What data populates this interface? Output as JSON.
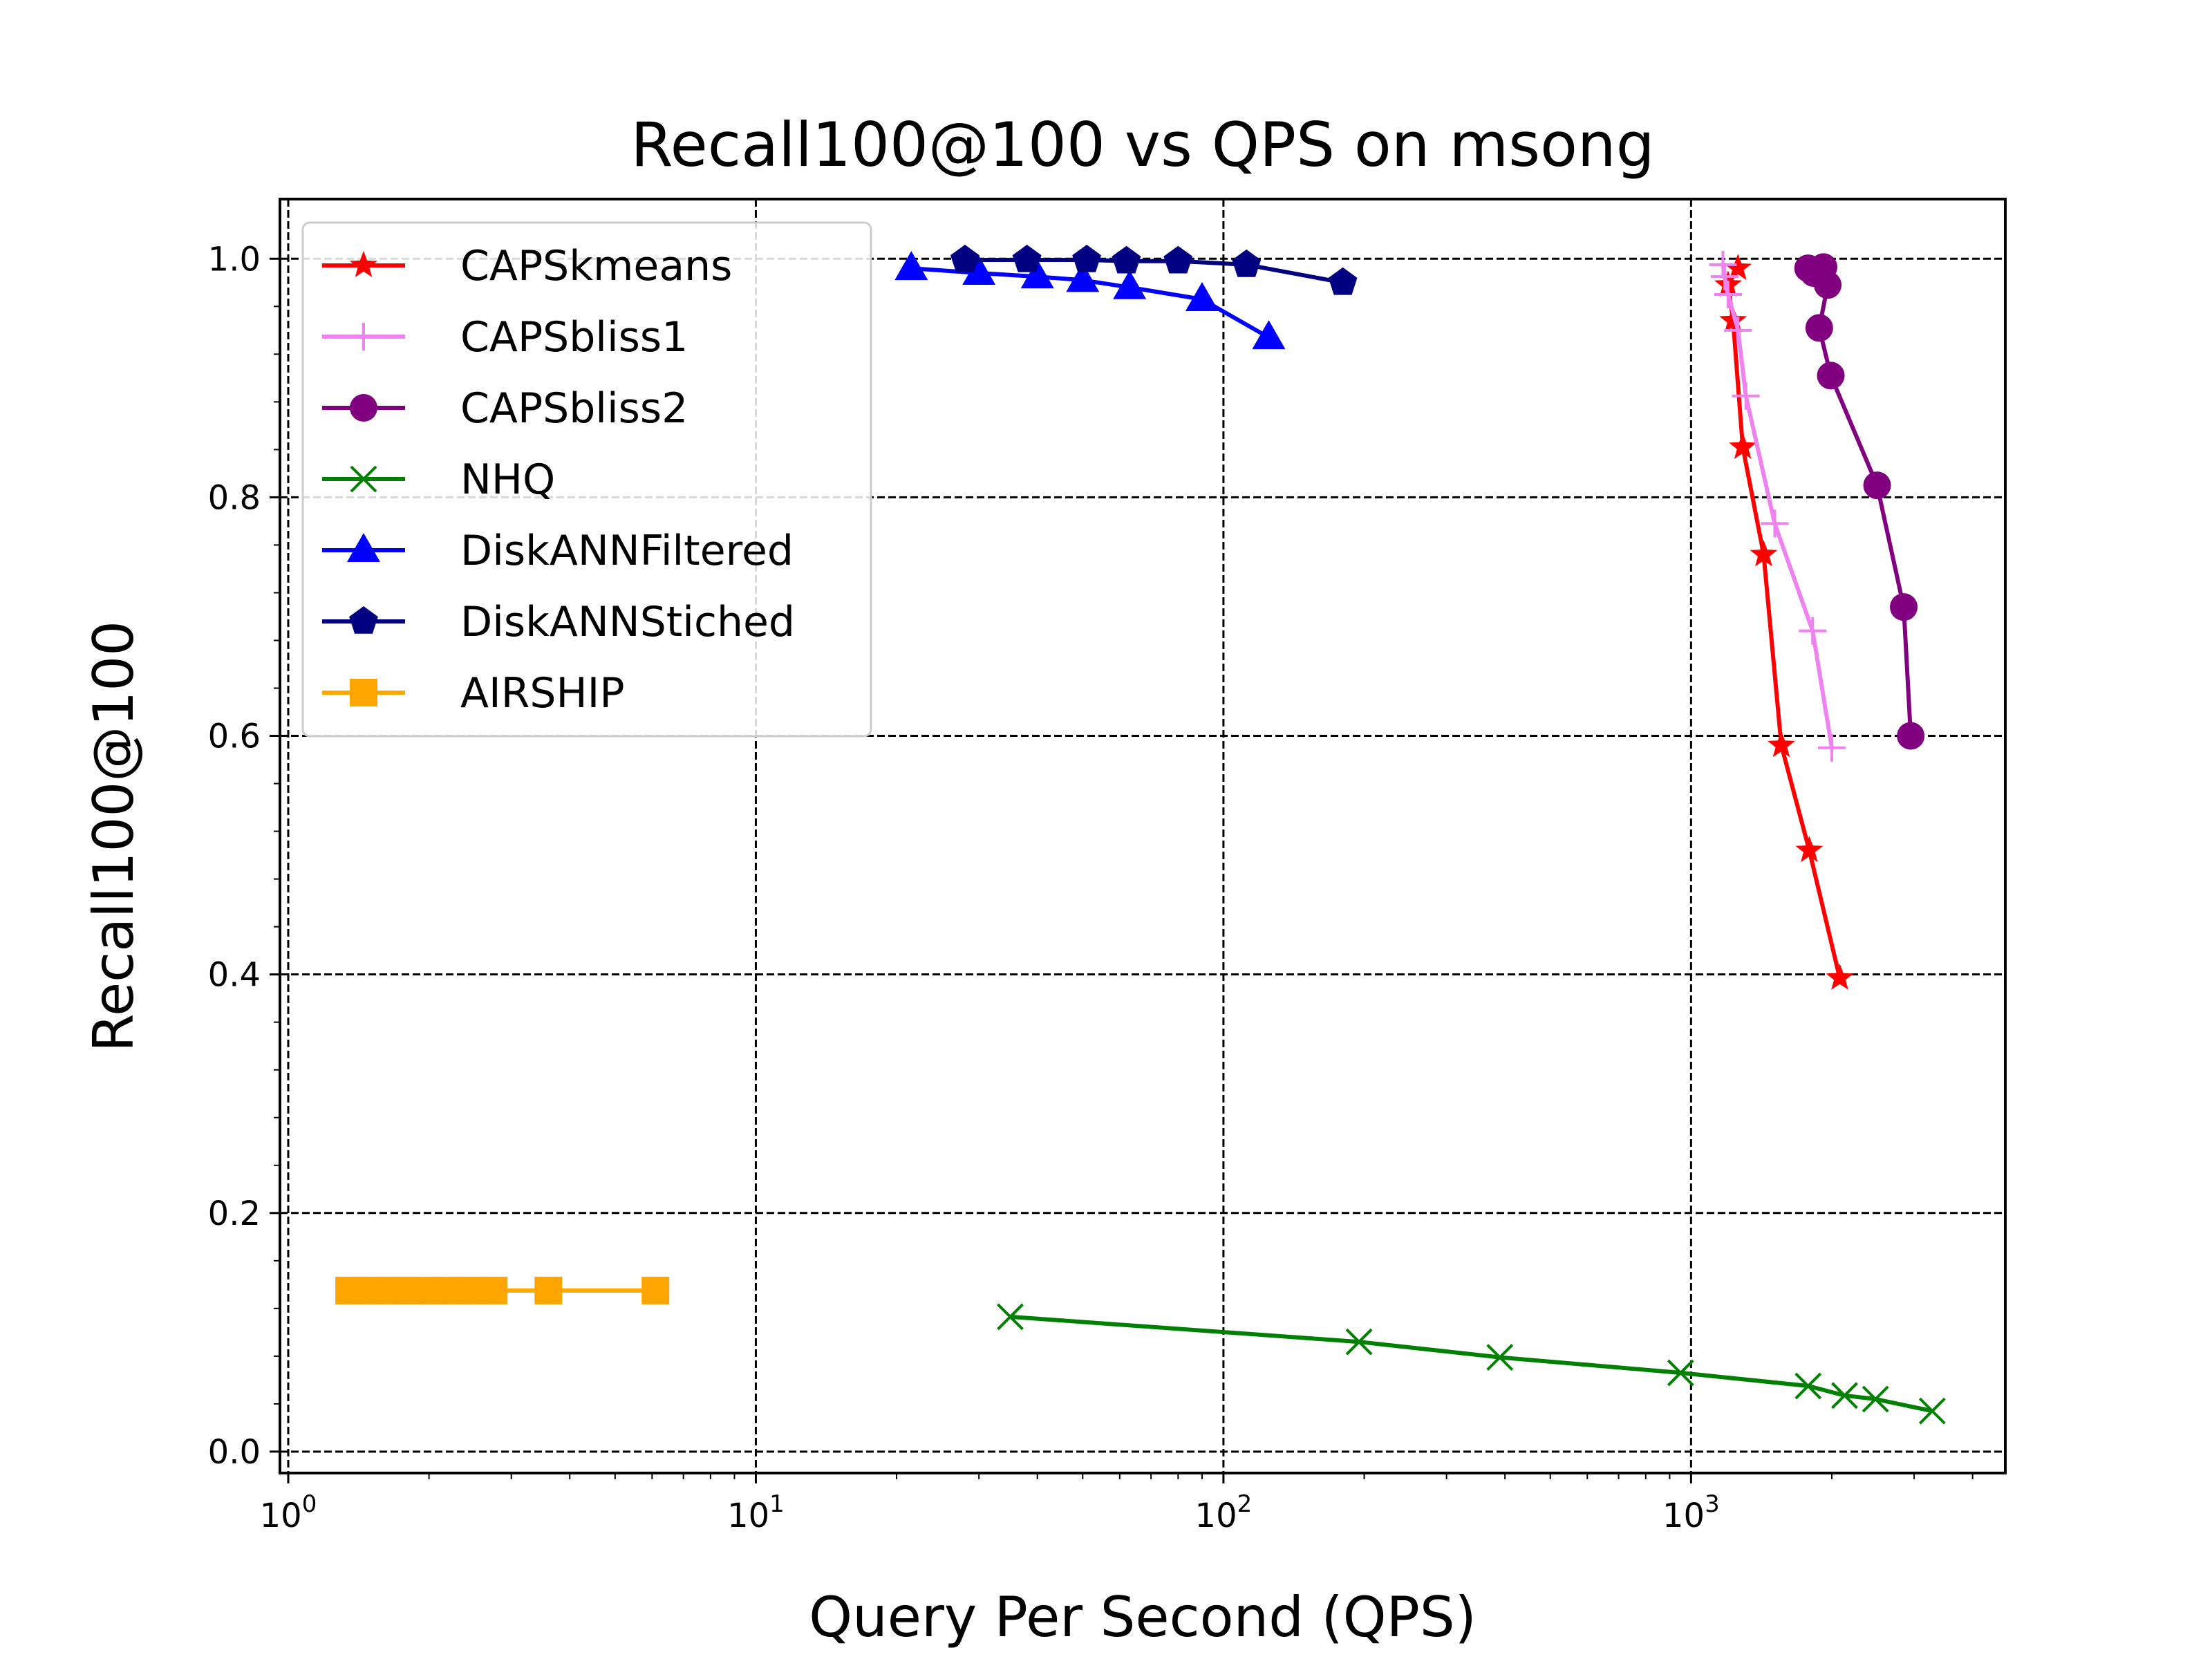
{
  "chart_data": {
    "type": "line",
    "title": "Recall100@100 vs QPS on msong",
    "xlabel": "Query Per Second (QPS)",
    "ylabel": "Recall100@100",
    "xscale": "log",
    "xlim": [
      0.96,
      4700
    ],
    "ylim": [
      -0.018,
      1.05
    ],
    "x_ticks": [
      {
        "value": 1,
        "base": "10",
        "exp": "0"
      },
      {
        "value": 10,
        "base": "10",
        "exp": "1"
      },
      {
        "value": 100,
        "base": "10",
        "exp": "2"
      },
      {
        "value": 1000,
        "base": "10",
        "exp": "3"
      }
    ],
    "y_ticks": [
      {
        "value": 0.0,
        "label": "0.0"
      },
      {
        "value": 0.2,
        "label": "0.2"
      },
      {
        "value": 0.4,
        "label": "0.4"
      },
      {
        "value": 0.6,
        "label": "0.6"
      },
      {
        "value": 0.8,
        "label": "0.8"
      },
      {
        "value": 1.0,
        "label": "1.0"
      }
    ],
    "grid": true,
    "legend_position": "top-left",
    "series": [
      {
        "name": "CAPSkmeans",
        "color": "#ff0000",
        "marker": "star",
        "x": [
          1260,
          1200,
          1230,
          1290,
          1430,
          1560,
          1790,
          2080
        ],
        "y": [
          0.992,
          0.978,
          0.948,
          0.842,
          0.752,
          0.592,
          0.504,
          0.397
        ]
      },
      {
        "name": "CAPSbliss1",
        "color": "#ee82ee",
        "marker": "plus",
        "x": [
          1170,
          1180,
          1200,
          1260,
          1310,
          1510,
          1820,
          2000
        ],
        "y": [
          0.995,
          0.985,
          0.97,
          0.94,
          0.885,
          0.778,
          0.688,
          0.59
        ]
      },
      {
        "name": "CAPSbliss2",
        "color": "#800080",
        "marker": "circle",
        "x": [
          1780,
          1830,
          1920,
          1960,
          1880,
          1990,
          2500,
          2850,
          2950
        ],
        "y": [
          0.992,
          0.988,
          0.993,
          0.978,
          0.942,
          0.902,
          0.81,
          0.708,
          0.6
        ]
      },
      {
        "name": "NHQ",
        "color": "#008000",
        "marker": "x",
        "x": [
          35,
          195,
          390,
          950,
          1780,
          2130,
          2480,
          3280
        ],
        "y": [
          0.113,
          0.092,
          0.079,
          0.066,
          0.055,
          0.047,
          0.044,
          0.034
        ]
      },
      {
        "name": "DiskANNFiltered",
        "color": "#0000ff",
        "marker": "triangle",
        "x": [
          21.5,
          30,
          40,
          50,
          63,
          90,
          125
        ],
        "y": [
          0.992,
          0.988,
          0.985,
          0.982,
          0.976,
          0.966,
          0.934
        ]
      },
      {
        "name": "DiskANNStiched",
        "color": "#000080",
        "marker": "pentagon",
        "x": [
          28,
          38,
          51,
          62,
          80,
          112,
          180
        ],
        "y": [
          0.999,
          0.999,
          0.999,
          0.998,
          0.998,
          0.995,
          0.98
        ]
      },
      {
        "name": "AIRSHIP",
        "color": "#ffa500",
        "marker": "square",
        "x": [
          1.35,
          1.5,
          1.65,
          1.8,
          2.0,
          2.2,
          2.45,
          2.75,
          3.6,
          6.1
        ],
        "y": [
          0.135,
          0.135,
          0.135,
          0.135,
          0.135,
          0.135,
          0.135,
          0.135,
          0.135,
          0.135
        ]
      }
    ]
  }
}
